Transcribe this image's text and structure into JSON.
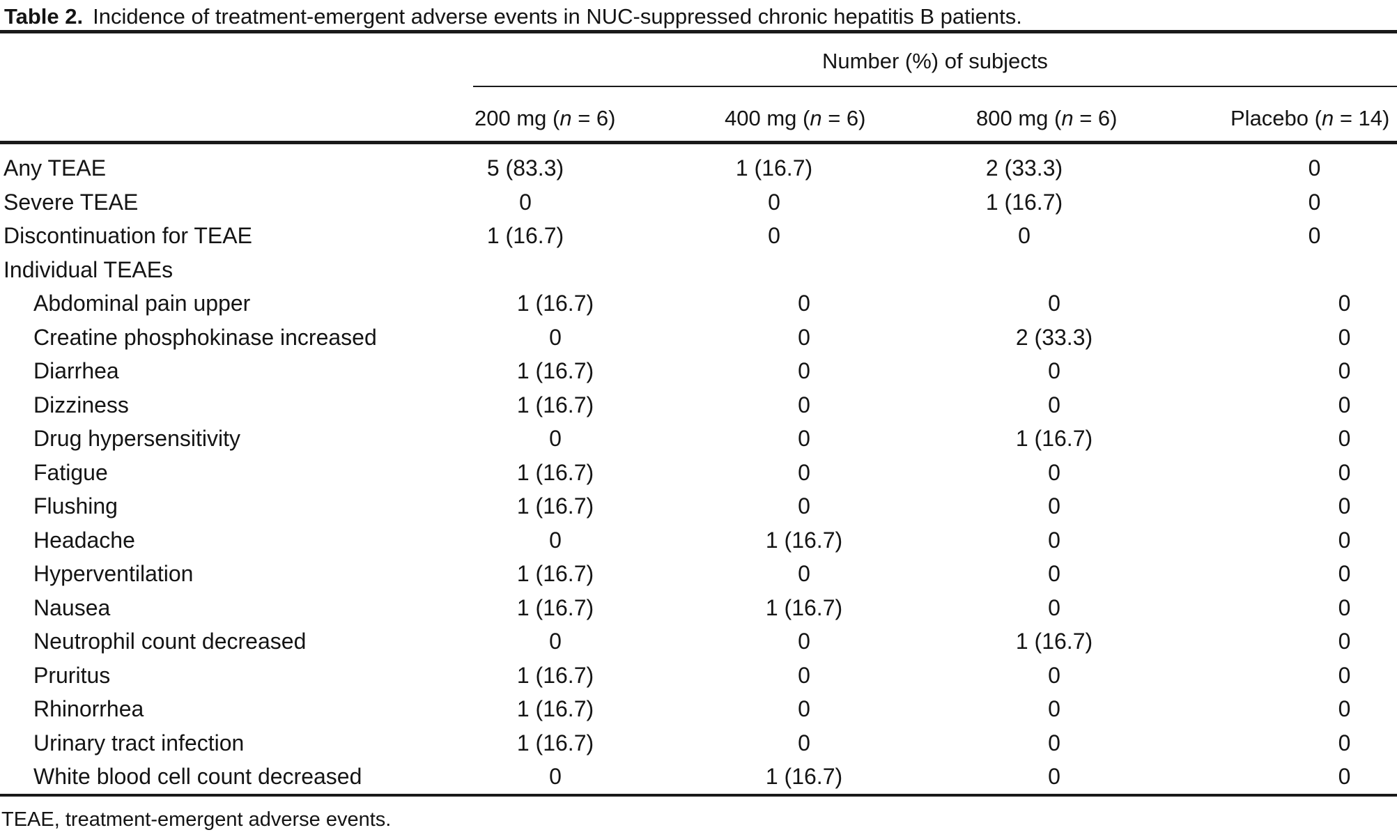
{
  "title": {
    "label": "Table 2.",
    "text": "Incidence of treatment-emergent adverse events in NUC-suppressed chronic hepatitis B patients."
  },
  "spanner": "Number (%) of subjects",
  "columns": [
    {
      "pre": "200 mg (",
      "n": "n",
      "post": " = 6)"
    },
    {
      "pre": "400 mg (",
      "n": "n",
      "post": " = 6)"
    },
    {
      "pre": "800 mg (",
      "n": "n",
      "post": " = 6)"
    },
    {
      "pre": "Placebo (",
      "n": "n",
      "post": " = 14)"
    }
  ],
  "rows": [
    {
      "label": "Any TEAE",
      "indent": false,
      "values": [
        "5 (83.3)",
        "1 (16.7)",
        "2 (33.3)",
        "0"
      ]
    },
    {
      "label": "Severe TEAE",
      "indent": false,
      "values": [
        "0",
        "0",
        "1 (16.7)",
        "0"
      ]
    },
    {
      "label": "Discontinuation for TEAE",
      "indent": false,
      "values": [
        "1 (16.7)",
        "0",
        "0",
        "0"
      ]
    },
    {
      "label": "Individual TEAEs",
      "indent": false,
      "values": [
        "",
        "",
        "",
        ""
      ]
    },
    {
      "label": "Abdominal pain upper",
      "indent": true,
      "values": [
        "1 (16.7)",
        "0",
        "0",
        "0"
      ]
    },
    {
      "label": "Creatine phosphokinase increased",
      "indent": true,
      "values": [
        "0",
        "0",
        "2 (33.3)",
        "0"
      ]
    },
    {
      "label": "Diarrhea",
      "indent": true,
      "values": [
        "1 (16.7)",
        "0",
        "0",
        "0"
      ]
    },
    {
      "label": "Dizziness",
      "indent": true,
      "values": [
        "1 (16.7)",
        "0",
        "0",
        "0"
      ]
    },
    {
      "label": "Drug hypersensitivity",
      "indent": true,
      "values": [
        "0",
        "0",
        "1 (16.7)",
        "0"
      ]
    },
    {
      "label": "Fatigue",
      "indent": true,
      "values": [
        "1 (16.7)",
        "0",
        "0",
        "0"
      ]
    },
    {
      "label": "Flushing",
      "indent": true,
      "values": [
        "1 (16.7)",
        "0",
        "0",
        "0"
      ]
    },
    {
      "label": "Headache",
      "indent": true,
      "values": [
        "0",
        "1 (16.7)",
        "0",
        "0"
      ]
    },
    {
      "label": "Hyperventilation",
      "indent": true,
      "values": [
        "1 (16.7)",
        "0",
        "0",
        "0"
      ]
    },
    {
      "label": "Nausea",
      "indent": true,
      "values": [
        "1 (16.7)",
        "1 (16.7)",
        "0",
        "0"
      ]
    },
    {
      "label": "Neutrophil count decreased",
      "indent": true,
      "values": [
        "0",
        "0",
        "1 (16.7)",
        "0"
      ]
    },
    {
      "label": "Pruritus",
      "indent": true,
      "values": [
        "1 (16.7)",
        "0",
        "0",
        "0"
      ]
    },
    {
      "label": "Rhinorrhea",
      "indent": true,
      "values": [
        "1 (16.7)",
        "0",
        "0",
        "0"
      ]
    },
    {
      "label": "Urinary tract infection",
      "indent": true,
      "values": [
        "1 (16.7)",
        "0",
        "0",
        "0"
      ]
    },
    {
      "label": "White blood cell count decreased",
      "indent": true,
      "values": [
        "0",
        "1 (16.7)",
        "0",
        "0"
      ]
    }
  ],
  "footnote": "TEAE, treatment-emergent adverse events.",
  "colors": {
    "text": "#141414",
    "rule": "#1a1a1a",
    "background": "#ffffff"
  }
}
